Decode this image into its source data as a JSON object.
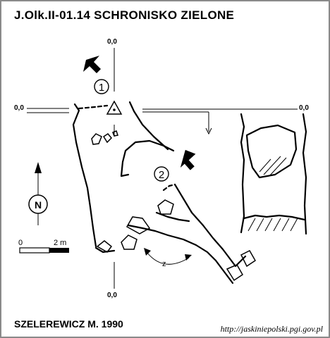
{
  "title": "J.Olk.II-01.14  SCHRONISKO  ZIELONE",
  "datum_labels": {
    "top": "0,0",
    "left": "0,0",
    "right": "0,0",
    "bottom": "0,0"
  },
  "entrance_markers": [
    "1",
    "2"
  ],
  "north_label": "N",
  "scale_bar": {
    "start": "0",
    "end": "2 m"
  },
  "slope_label": "z",
  "author": "SZELEREWICZ M. 1990",
  "url": "http://jaskiniepolski.pgi.gov.pl",
  "icons": [
    "entrance-arrow-icon",
    "north-compass-icon",
    "datum-triangle-icon"
  ],
  "colors": {
    "ink": "#000000",
    "background": "#ffffff",
    "border": "#8a8a8a"
  }
}
